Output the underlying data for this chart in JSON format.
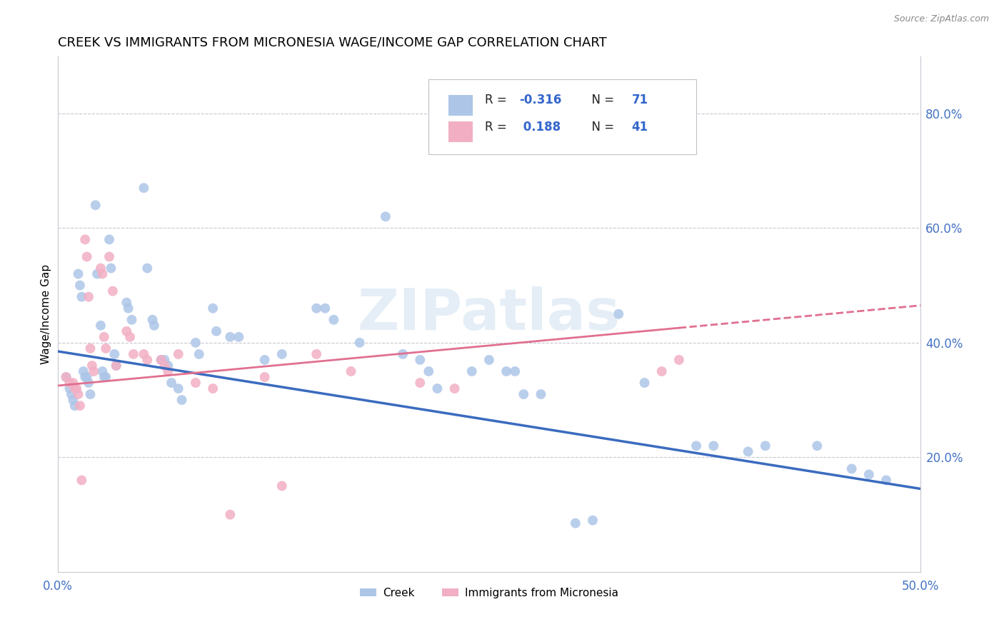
{
  "title": "CREEK VS IMMIGRANTS FROM MICRONESIA WAGE/INCOME GAP CORRELATION CHART",
  "source": "Source: ZipAtlas.com",
  "ylabel": "Wage/Income Gap",
  "right_yticks": [
    "80.0%",
    "60.0%",
    "40.0%",
    "20.0%"
  ],
  "right_ytick_vals": [
    0.8,
    0.6,
    0.4,
    0.2
  ],
  "legend_label1": "Creek",
  "legend_label2": "Immigrants from Micronesia",
  "R1": -0.316,
  "N1": 71,
  "R2": 0.188,
  "N2": 41,
  "color_creek": "#adc6e8",
  "color_micronesia": "#f2afc4",
  "color_creek_line": "#3a6bbf",
  "color_micronesia_line": "#e07090",
  "watermark": "ZIPatlas",
  "xlim": [
    0.0,
    0.5
  ],
  "ylim": [
    0.0,
    0.9
  ],
  "creek_line_y0": 0.385,
  "creek_line_y1": 0.145,
  "micro_line_y0": 0.325,
  "micro_line_y1": 0.465,
  "creek_x": [
    0.005,
    0.007,
    0.008,
    0.009,
    0.01,
    0.012,
    0.013,
    0.014,
    0.015,
    0.016,
    0.017,
    0.018,
    0.019,
    0.022,
    0.023,
    0.025,
    0.026,
    0.027,
    0.028,
    0.03,
    0.031,
    0.033,
    0.034,
    0.04,
    0.041,
    0.043,
    0.05,
    0.052,
    0.055,
    0.056,
    0.06,
    0.062,
    0.064,
    0.066,
    0.07,
    0.072,
    0.08,
    0.082,
    0.09,
    0.092,
    0.1,
    0.105,
    0.12,
    0.13,
    0.15,
    0.155,
    0.16,
    0.175,
    0.19,
    0.2,
    0.21,
    0.215,
    0.22,
    0.24,
    0.25,
    0.26,
    0.265,
    0.27,
    0.28,
    0.3,
    0.31,
    0.325,
    0.34,
    0.37,
    0.38,
    0.4,
    0.41,
    0.44,
    0.46,
    0.47,
    0.48
  ],
  "creek_y": [
    0.34,
    0.32,
    0.31,
    0.3,
    0.29,
    0.52,
    0.5,
    0.48,
    0.35,
    0.34,
    0.34,
    0.33,
    0.31,
    0.64,
    0.52,
    0.43,
    0.35,
    0.34,
    0.34,
    0.58,
    0.53,
    0.38,
    0.36,
    0.47,
    0.46,
    0.44,
    0.67,
    0.53,
    0.44,
    0.43,
    0.37,
    0.37,
    0.36,
    0.33,
    0.32,
    0.3,
    0.4,
    0.38,
    0.46,
    0.42,
    0.41,
    0.41,
    0.37,
    0.38,
    0.46,
    0.46,
    0.44,
    0.4,
    0.62,
    0.38,
    0.37,
    0.35,
    0.32,
    0.35,
    0.37,
    0.35,
    0.35,
    0.31,
    0.31,
    0.085,
    0.09,
    0.45,
    0.33,
    0.22,
    0.22,
    0.21,
    0.22,
    0.22,
    0.18,
    0.17,
    0.16
  ],
  "micro_x": [
    0.005,
    0.007,
    0.009,
    0.01,
    0.011,
    0.012,
    0.013,
    0.014,
    0.016,
    0.017,
    0.018,
    0.019,
    0.02,
    0.021,
    0.025,
    0.026,
    0.027,
    0.028,
    0.03,
    0.032,
    0.034,
    0.04,
    0.042,
    0.044,
    0.05,
    0.052,
    0.06,
    0.062,
    0.064,
    0.07,
    0.08,
    0.09,
    0.1,
    0.12,
    0.13,
    0.15,
    0.17,
    0.21,
    0.23,
    0.35,
    0.36
  ],
  "micro_y": [
    0.34,
    0.33,
    0.33,
    0.32,
    0.32,
    0.31,
    0.29,
    0.16,
    0.58,
    0.55,
    0.48,
    0.39,
    0.36,
    0.35,
    0.53,
    0.52,
    0.41,
    0.39,
    0.55,
    0.49,
    0.36,
    0.42,
    0.41,
    0.38,
    0.38,
    0.37,
    0.37,
    0.36,
    0.35,
    0.38,
    0.33,
    0.32,
    0.1,
    0.34,
    0.15,
    0.38,
    0.35,
    0.33,
    0.32,
    0.35,
    0.37
  ]
}
